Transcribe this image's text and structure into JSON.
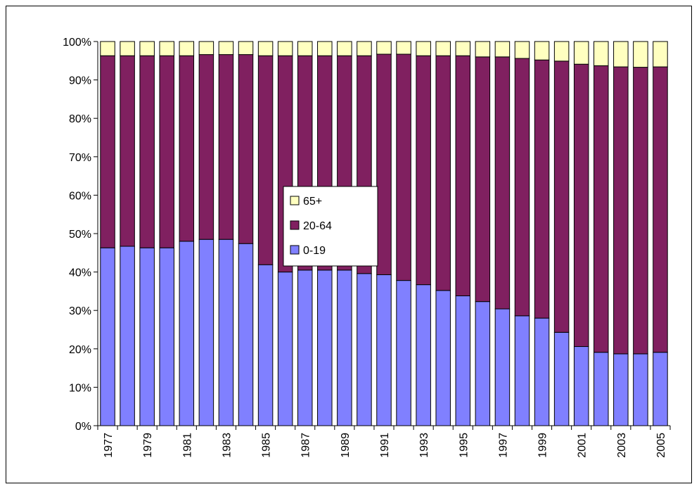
{
  "chart_data": {
    "type": "bar",
    "stacked": true,
    "percent": true,
    "categories": [
      "1977",
      "1978",
      "1979",
      "1980",
      "1981",
      "1982",
      "1983",
      "1984",
      "1985",
      "1986",
      "1987",
      "1988",
      "1989",
      "1990",
      "1991",
      "1992",
      "1993",
      "1994",
      "1995",
      "1996",
      "1997",
      "1998",
      "1999",
      "2000",
      "2001",
      "2002",
      "2003",
      "2004",
      "2005"
    ],
    "x_tick_labels": [
      "1977",
      "1979",
      "1981",
      "1983",
      "1985",
      "1987",
      "1989",
      "1991",
      "1993",
      "1995",
      "1997",
      "1999",
      "2001",
      "2003",
      "2005"
    ],
    "y_tick_labels": [
      "0%",
      "10%",
      "20%",
      "30%",
      "40%",
      "50%",
      "60%",
      "70%",
      "80%",
      "90%",
      "100%"
    ],
    "ylim": [
      0,
      100
    ],
    "grid": false,
    "legend_position": "center",
    "series": [
      {
        "name": "0-19",
        "color": "#8080ff",
        "values": [
          46.3,
          46.7,
          46.3,
          46.3,
          48.0,
          48.5,
          48.5,
          47.4,
          41.9,
          40.0,
          40.5,
          40.5,
          40.5,
          39.6,
          39.3,
          37.8,
          36.7,
          35.2,
          33.8,
          32.3,
          30.4,
          28.6,
          28.0,
          24.3,
          20.6,
          19.1,
          18.7,
          18.7,
          19.1
        ]
      },
      {
        "name": "20-64",
        "color": "#802060",
        "values": [
          50.0,
          49.6,
          50.0,
          50.0,
          48.3,
          48.1,
          48.1,
          49.2,
          54.4,
          56.3,
          55.8,
          55.8,
          55.8,
          56.7,
          57.4,
          58.9,
          59.6,
          61.1,
          62.5,
          63.7,
          65.6,
          67.0,
          67.2,
          70.6,
          73.5,
          74.6,
          74.7,
          74.6,
          74.3
        ]
      },
      {
        "name": "65+",
        "color": "#ffffc0",
        "values": [
          3.7,
          3.7,
          3.7,
          3.7,
          3.7,
          3.4,
          3.4,
          3.4,
          3.7,
          3.7,
          3.7,
          3.7,
          3.7,
          3.7,
          3.3,
          3.3,
          3.7,
          3.7,
          3.7,
          4.0,
          4.0,
          4.4,
          4.8,
          5.1,
          5.9,
          6.3,
          6.6,
          6.7,
          6.6
        ]
      }
    ],
    "legend_order": [
      "65+",
      "20-64",
      "0-19"
    ]
  }
}
